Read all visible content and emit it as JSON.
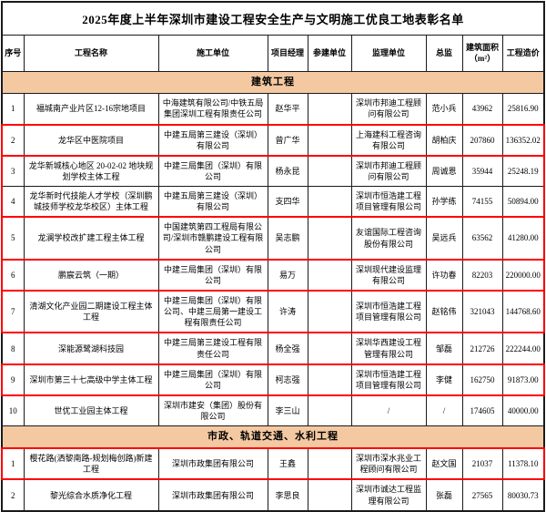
{
  "title": "2025年度上半年深圳市建设工程安全生产与文明施工优良工地表彰名单",
  "columns": [
    "序号",
    "工程名称",
    "施工单位",
    "项目经理",
    "参建单位",
    "监理单位",
    "总监",
    "建筑面积（m²）",
    "工程造价"
  ],
  "colors": {
    "highlight": "#ff0000",
    "section_bar": "#f4c9a2"
  },
  "sections": [
    {
      "title": "建筑工程",
      "rows": [
        {
          "no": "1",
          "name": "福城南产业片区12-16宗地项目",
          "contractor": "中海建筑有限公司/中铁五局集团深圳工程有限责任公司",
          "manager": "赵华平",
          "participant": "",
          "supervision": "深圳市邦迪工程顾问有限公司",
          "chief": "范小兵",
          "area": "43962",
          "cost": "25816.90",
          "highlight": "none"
        },
        {
          "no": "2",
          "name": "龙华区中医院项目",
          "contractor": "中建五局第三建设（深圳）有限公司",
          "manager": "曾广华",
          "participant": "",
          "supervision": "上海建科工程咨询有限公司",
          "chief": "胡柏庆",
          "area": "207860",
          "cost": "136352.02",
          "highlight": "box"
        },
        {
          "no": "3",
          "name": "龙华新城核心地区 20-02-02 地块规划学校主体工程",
          "contractor": "中建三局集团（深圳）有限公司",
          "manager": "杨永昆",
          "participant": "",
          "supervision": "深圳市邦迪工程顾问有限公司",
          "chief": "周诚恩",
          "area": "35944",
          "cost": "25248.19",
          "highlight": "top"
        },
        {
          "no": "4",
          "name": "龙华新时代技能人才学校（深圳鹏城技师学校龙华校区）主体工程",
          "contractor": "中建五局第三建设（深圳）有限公司",
          "manager": "支四华",
          "participant": "",
          "supervision": "深圳市恒浩建工程项目管理有限公司",
          "chief": "孙学练",
          "area": "74155",
          "cost": "50894.00",
          "highlight": "bottom"
        },
        {
          "no": "5",
          "name": "龙澜学校改扩建工程主体工程",
          "contractor": "中国建筑第四工程局有限公司/深圳市赣鹏建设工程有限公司",
          "manager": "吴志鹏",
          "participant": "",
          "supervision": "友谊国际工程咨询股份有限公司",
          "chief": "吴远兵",
          "area": "63562",
          "cost": "41280.00",
          "highlight": "box"
        },
        {
          "no": "6",
          "name": "鹏宸云筑（一期）",
          "contractor": "中建三局集团（深圳）有限公司",
          "manager": "易万",
          "participant": "",
          "supervision": "深圳现代建设监理有限公司",
          "chief": "许功春",
          "area": "82203",
          "cost": "220000.00",
          "highlight": "box"
        },
        {
          "no": "7",
          "name": "清湖文化产业园二期建设工程主体工程",
          "contractor": "中建三局集团（深圳）有限公司、中建三局第一建设工程有限责任公司",
          "manager": "许涛",
          "participant": "",
          "supervision": "深圳市恒浩建工程项目管理有限公司",
          "chief": "赵铭伟",
          "area": "321043",
          "cost": "144768.60",
          "highlight": "box"
        },
        {
          "no": "8",
          "name": "深能源鹭湖科技园",
          "contractor": "中建三局第三建设工程有限责任公司",
          "manager": "杨全强",
          "participant": "",
          "supervision": "深圳华西建设工程管理有限公司",
          "chief": "邹磊",
          "area": "212726",
          "cost": "222244.00",
          "highlight": "none"
        },
        {
          "no": "9",
          "name": "深圳市第三十七高级中学主体工程",
          "contractor": "中建三局集团（深圳）有限公司",
          "manager": "柯志强",
          "participant": "",
          "supervision": "深圳市恒浩建工程项目管理有限公司",
          "chief": "李健",
          "area": "162750",
          "cost": "91873.00",
          "highlight": "box"
        },
        {
          "no": "10",
          "name": "世优工业园主体工程",
          "contractor": "深圳市建安（集团）股份有限公司",
          "manager": "李三山",
          "participant": "",
          "supervision": "/",
          "chief": "/",
          "area": "174605",
          "cost": "40000.00",
          "highlight": "none"
        }
      ]
    },
    {
      "title": "市政、轨道交通、水利工程",
      "rows": [
        {
          "no": "1",
          "name": "樱花路(洒黎南路-规划梅创路)新建工程",
          "contractor": "深圳市政集团有限公司",
          "manager": "王鑫",
          "participant": "",
          "supervision": "深圳市深水兆业工程顾问有限公司",
          "chief": "赵文国",
          "area": "21037",
          "cost": "11378.10",
          "highlight": "box"
        },
        {
          "no": "2",
          "name": "黎光综合水质净化工程",
          "contractor": "深圳市政集团有限公司",
          "manager": "李思良",
          "participant": "",
          "supervision": "深圳市诚达工程监理有限公司",
          "chief": "张磊",
          "area": "27565",
          "cost": "80030.73",
          "highlight": "none"
        }
      ]
    }
  ]
}
